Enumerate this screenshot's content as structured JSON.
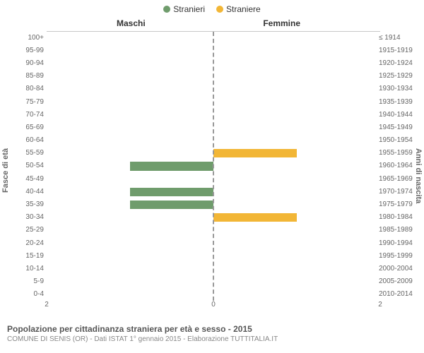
{
  "legend": {
    "male": {
      "label": "Stranieri",
      "color": "#6f9c6c"
    },
    "female": {
      "label": "Straniere",
      "color": "#f2b636"
    }
  },
  "columns": {
    "male": "Maschi",
    "female": "Femmine"
  },
  "yaxis": {
    "left_title": "Fasce di età",
    "right_title": "Anni di nascita"
  },
  "chart": {
    "type": "pyramid-bar",
    "x_max": 2,
    "xticks_left": [
      "2",
      "0"
    ],
    "xticks_right": [
      "0",
      "2"
    ],
    "background_color": "#ffffff",
    "grid_color": "#e0e0e0",
    "bar_width_ratio": 0.68
  },
  "rows": [
    {
      "age": "100+",
      "birth": "≤ 1914",
      "m": 0,
      "f": 0
    },
    {
      "age": "95-99",
      "birth": "1915-1919",
      "m": 0,
      "f": 0
    },
    {
      "age": "90-94",
      "birth": "1920-1924",
      "m": 0,
      "f": 0
    },
    {
      "age": "85-89",
      "birth": "1925-1929",
      "m": 0,
      "f": 0
    },
    {
      "age": "80-84",
      "birth": "1930-1934",
      "m": 0,
      "f": 0
    },
    {
      "age": "75-79",
      "birth": "1935-1939",
      "m": 0,
      "f": 0
    },
    {
      "age": "70-74",
      "birth": "1940-1944",
      "m": 0,
      "f": 0
    },
    {
      "age": "65-69",
      "birth": "1945-1949",
      "m": 0,
      "f": 0
    },
    {
      "age": "60-64",
      "birth": "1950-1954",
      "m": 0,
      "f": 0
    },
    {
      "age": "55-59",
      "birth": "1955-1959",
      "m": 0,
      "f": 1
    },
    {
      "age": "50-54",
      "birth": "1960-1964",
      "m": 1,
      "f": 0
    },
    {
      "age": "45-49",
      "birth": "1965-1969",
      "m": 0,
      "f": 0
    },
    {
      "age": "40-44",
      "birth": "1970-1974",
      "m": 1,
      "f": 0
    },
    {
      "age": "35-39",
      "birth": "1975-1979",
      "m": 1,
      "f": 0
    },
    {
      "age": "30-34",
      "birth": "1980-1984",
      "m": 0,
      "f": 1
    },
    {
      "age": "25-29",
      "birth": "1985-1989",
      "m": 0,
      "f": 0
    },
    {
      "age": "20-24",
      "birth": "1990-1994",
      "m": 0,
      "f": 0
    },
    {
      "age": "15-19",
      "birth": "1995-1999",
      "m": 0,
      "f": 0
    },
    {
      "age": "10-14",
      "birth": "2000-2004",
      "m": 0,
      "f": 0
    },
    {
      "age": "5-9",
      "birth": "2005-2009",
      "m": 0,
      "f": 0
    },
    {
      "age": "0-4",
      "birth": "2010-2014",
      "m": 0,
      "f": 0
    }
  ],
  "footer": {
    "title": "Popolazione per cittadinanza straniera per età e sesso - 2015",
    "sub": "COMUNE DI SENIS (OR) - Dati ISTAT 1° gennaio 2015 - Elaborazione TUTTITALIA.IT"
  }
}
